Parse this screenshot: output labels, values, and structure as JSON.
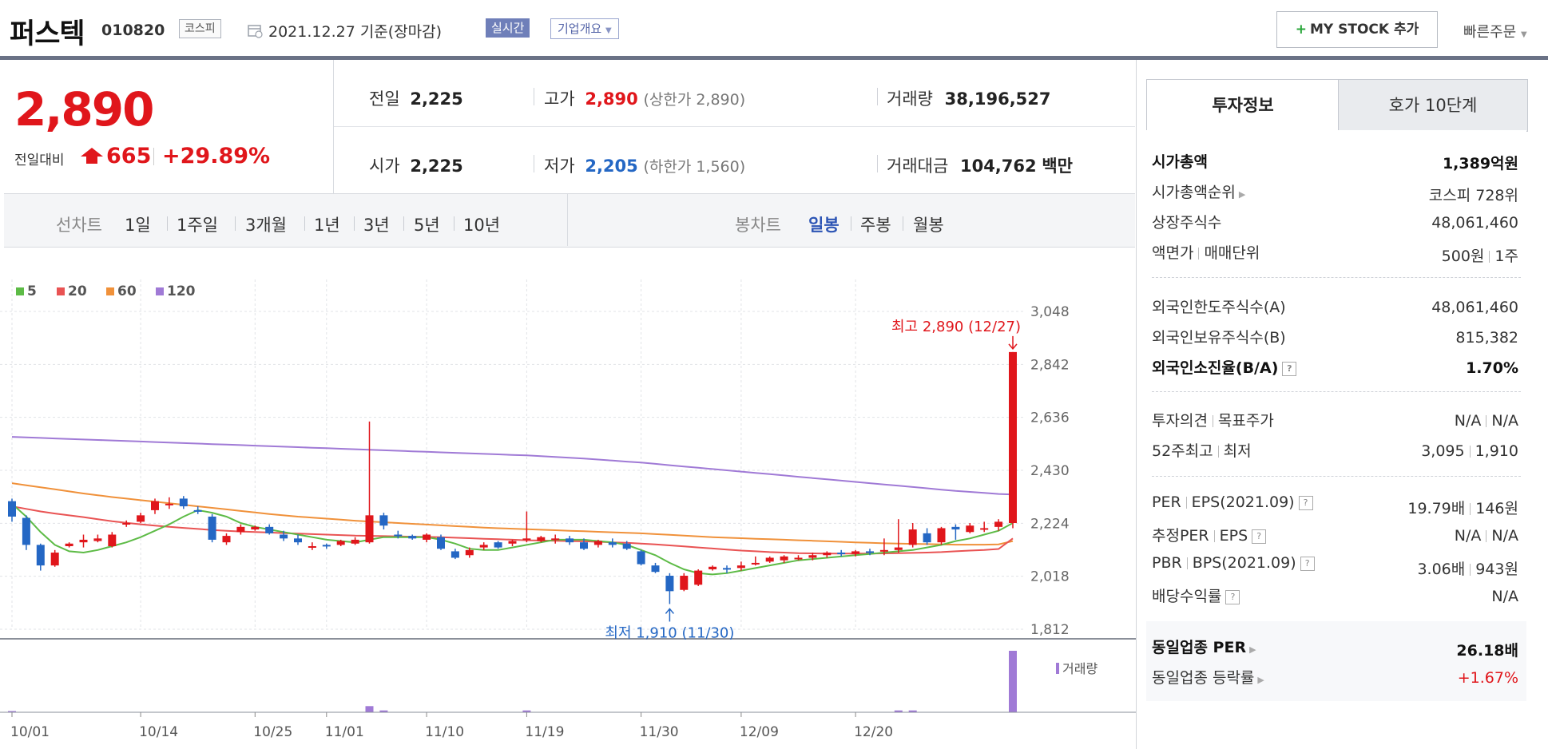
{
  "header": {
    "name": "퍼스텍",
    "code": "010820",
    "market": "코스피",
    "date": "2021.12.27 기준(장마감)",
    "realtime": "실시간",
    "corp_info": "기업개요",
    "mystock_button": "MY STOCK 추가",
    "quick_order": "빠른주문"
  },
  "price": {
    "current": "2,890",
    "change_label": "전일대비",
    "change": "665",
    "change_pct": "+29.89%"
  },
  "stats": {
    "prev_label": "전일",
    "prev": "2,225",
    "open_label": "시가",
    "open": "2,225",
    "high_label": "고가",
    "high": "2,890",
    "upper_limit": "(상한가 2,890)",
    "low_label": "저가",
    "low": "2,205",
    "lower_limit": "(하한가 1,560)",
    "volume_label": "거래량",
    "volume": "38,196,527",
    "amount_label": "거래대금",
    "amount": "104,762",
    "amount_unit": "백만"
  },
  "period_bar": {
    "line_label": "선차트",
    "line_periods": [
      "1일",
      "1주일",
      "3개월",
      "1년",
      "3년",
      "5년",
      "10년"
    ],
    "candle_label": "봉차트",
    "candle_periods": [
      "일봉",
      "주봉",
      "월봉"
    ],
    "active_candle": "일봉"
  },
  "right_panel": {
    "tabs": [
      "투자정보",
      "호가 10단계"
    ],
    "rows": [
      {
        "label": "시가총액",
        "value": "1,389억원"
      },
      {
        "label": "시가총액순위",
        "value": "코스피 728위"
      },
      {
        "label": "상장주식수",
        "value": "48,061,460"
      },
      {
        "label": "액면가",
        "label2": "매매단위",
        "value": "500원",
        "value2": "1주"
      },
      {
        "label": "외국인한도주식수(A)",
        "value": "48,061,460"
      },
      {
        "label": "외국인보유주식수(B)",
        "value": "815,382"
      },
      {
        "label": "외국인소진율(B/A)",
        "value": "1.70%"
      },
      {
        "label": "투자의견",
        "label2": "목표주가",
        "value": "N/A",
        "value2": "N/A"
      },
      {
        "label": "52주최고",
        "label2": "최저",
        "value": "3,095",
        "value2": "1,910"
      },
      {
        "label": "PER",
        "label2": "EPS(2021.09)",
        "value": "19.79배",
        "value2": "146원"
      },
      {
        "label": "추정PER",
        "label2": "EPS",
        "value": "N/A",
        "value2": "N/A"
      },
      {
        "label": "PBR",
        "label2": "BPS(2021.09)",
        "value": "3.06배",
        "value2": "943원"
      },
      {
        "label": "배당수익률",
        "value": "N/A"
      },
      {
        "label": "동일업종 PER",
        "value": "26.18배"
      },
      {
        "label": "동일업종 등락률",
        "value": "+1.67%"
      }
    ]
  },
  "colors": {
    "up": "#e0161b",
    "down": "#2467c4",
    "ma5": "#5dbb46",
    "ma20": "#e95353",
    "ma60": "#f0913a",
    "ma120": "#a07ad6",
    "volume": "#a07ad6"
  },
  "chart_data": {
    "type": "candlestick",
    "legend": [
      "5",
      "20",
      "60",
      "120"
    ],
    "y_ticks": [
      "3,048",
      "2,842",
      "2,636",
      "2,430",
      "2,224",
      "2,018",
      "1,812"
    ],
    "ylim": [
      1812,
      3048
    ],
    "x_ticks": [
      "10/01",
      "10/14",
      "10/25",
      "11/01",
      "11/10",
      "11/19",
      "11/30",
      "12/09",
      "12/20"
    ],
    "annotation_high": "최고 2,890 (12/27)",
    "annotation_low": "최저 1,910 (11/30)",
    "volume_label": "거래량",
    "candles": [
      [
        2310,
        2320,
        2230,
        2250
      ],
      [
        2245,
        2255,
        2120,
        2140
      ],
      [
        2140,
        2145,
        2040,
        2060
      ],
      [
        2060,
        2120,
        2055,
        2110
      ],
      [
        2135,
        2150,
        2130,
        2145
      ],
      [
        2150,
        2180,
        2130,
        2160
      ],
      [
        2155,
        2180,
        2150,
        2165
      ],
      [
        2135,
        2190,
        2130,
        2180
      ],
      [
        2220,
        2235,
        2210,
        2225
      ],
      [
        2230,
        2265,
        2225,
        2255
      ],
      [
        2275,
        2320,
        2260,
        2310
      ],
      [
        2295,
        2325,
        2280,
        2300
      ],
      [
        2320,
        2330,
        2280,
        2290
      ],
      [
        2275,
        2290,
        2260,
        2270
      ],
      [
        2250,
        2260,
        2150,
        2160
      ],
      [
        2150,
        2185,
        2140,
        2175
      ],
      [
        2190,
        2220,
        2180,
        2210
      ],
      [
        2200,
        2215,
        2195,
        2210
      ],
      [
        2210,
        2220,
        2180,
        2185
      ],
      [
        2180,
        2195,
        2155,
        2165
      ],
      [
        2165,
        2180,
        2140,
        2150
      ],
      [
        2135,
        2150,
        2120,
        2135
      ],
      [
        2140,
        2145,
        2125,
        2135
      ],
      [
        2140,
        2160,
        2135,
        2155
      ],
      [
        2145,
        2170,
        2140,
        2160
      ],
      [
        2150,
        2620,
        2145,
        2255
      ],
      [
        2255,
        2265,
        2200,
        2215
      ],
      [
        2180,
        2195,
        2165,
        2175
      ],
      [
        2175,
        2180,
        2160,
        2165
      ],
      [
        2160,
        2185,
        2150,
        2180
      ],
      [
        2170,
        2180,
        2120,
        2125
      ],
      [
        2115,
        2125,
        2085,
        2090
      ],
      [
        2100,
        2130,
        2090,
        2120
      ],
      [
        2130,
        2150,
        2120,
        2140
      ],
      [
        2150,
        2155,
        2125,
        2130
      ],
      [
        2145,
        2160,
        2135,
        2155
      ],
      [
        2160,
        2270,
        2150,
        2165
      ],
      [
        2155,
        2175,
        2150,
        2170
      ],
      [
        2160,
        2180,
        2145,
        2165
      ],
      [
        2165,
        2175,
        2140,
        2150
      ],
      [
        2150,
        2165,
        2120,
        2125
      ],
      [
        2140,
        2160,
        2130,
        2155
      ],
      [
        2150,
        2165,
        2130,
        2140
      ],
      [
        2145,
        2155,
        2120,
        2125
      ],
      [
        2115,
        2120,
        2060,
        2065
      ],
      [
        2060,
        2070,
        2030,
        2035
      ],
      [
        2020,
        2030,
        1910,
        1960
      ],
      [
        1965,
        2030,
        1960,
        2020
      ],
      [
        1985,
        2045,
        1980,
        2040
      ],
      [
        2045,
        2060,
        2040,
        2055
      ],
      [
        2050,
        2060,
        2030,
        2045
      ],
      [
        2050,
        2075,
        2040,
        2060
      ],
      [
        2065,
        2095,
        2060,
        2070
      ],
      [
        2075,
        2095,
        2070,
        2090
      ],
      [
        2080,
        2100,
        2070,
        2095
      ],
      [
        2085,
        2100,
        2080,
        2090
      ],
      [
        2090,
        2110,
        2080,
        2100
      ],
      [
        2100,
        2115,
        2090,
        2110
      ],
      [
        2110,
        2120,
        2095,
        2105
      ],
      [
        2105,
        2120,
        2095,
        2115
      ],
      [
        2115,
        2125,
        2100,
        2110
      ],
      [
        2115,
        2165,
        2100,
        2120
      ],
      [
        2120,
        2240,
        2110,
        2130
      ],
      [
        2140,
        2225,
        2130,
        2200
      ],
      [
        2185,
        2205,
        2140,
        2150
      ],
      [
        2150,
        2210,
        2140,
        2205
      ],
      [
        2210,
        2220,
        2160,
        2200
      ],
      [
        2190,
        2225,
        2185,
        2215
      ],
      [
        2200,
        2230,
        2190,
        2205
      ],
      [
        2210,
        2240,
        2195,
        2230
      ],
      [
        2225,
        2890,
        2205,
        2890
      ]
    ],
    "ma5": [
      2300,
      2250,
      2190,
      2140,
      2115,
      2110,
      2120,
      2135,
      2150,
      2170,
      2195,
      2220,
      2250,
      2275,
      2265,
      2250,
      2225,
      2210,
      2200,
      2190,
      2180,
      2170,
      2160,
      2155,
      2150,
      2160,
      2170,
      2170,
      2170,
      2170,
      2160,
      2145,
      2125,
      2120,
      2120,
      2130,
      2140,
      2150,
      2160,
      2160,
      2160,
      2155,
      2150,
      2140,
      2120,
      2100,
      2070,
      2045,
      2030,
      2025,
      2030,
      2040,
      2050,
      2060,
      2070,
      2080,
      2085,
      2090,
      2095,
      2100,
      2105,
      2110,
      2115,
      2120,
      2130,
      2140,
      2155,
      2165,
      2180,
      2195,
      2225
    ],
    "ma20": [
      2290,
      2280,
      2270,
      2262,
      2255,
      2248,
      2240,
      2232,
      2226,
      2220,
      2215,
      2210,
      2206,
      2202,
      2198,
      2195,
      2192,
      2190,
      2188,
      2186,
      2184,
      2182,
      2180,
      2178,
      2176,
      2175,
      2174,
      2173,
      2172,
      2171,
      2170,
      2168,
      2166,
      2164,
      2162,
      2160,
      2158,
      2157,
      2156,
      2155,
      2154,
      2152,
      2150,
      2148,
      2145,
      2142,
      2138,
      2134,
      2130,
      2126,
      2122,
      2118,
      2115,
      2112,
      2110,
      2108,
      2107,
      2106,
      2106,
      2106,
      2106,
      2107,
      2108,
      2109,
      2110,
      2112,
      2115,
      2118,
      2120,
      2124,
      2165
    ],
    "ma60": [
      2380,
      2372,
      2364,
      2356,
      2348,
      2340,
      2333,
      2326,
      2320,
      2314,
      2308,
      2302,
      2296,
      2290,
      2284,
      2278,
      2272,
      2266,
      2260,
      2255,
      2250,
      2246,
      2242,
      2238,
      2234,
      2231,
      2228,
      2225,
      2222,
      2219,
      2216,
      2213,
      2210,
      2207,
      2205,
      2203,
      2201,
      2199,
      2197,
      2195,
      2193,
      2191,
      2189,
      2187,
      2185,
      2182,
      2179,
      2176,
      2173,
      2170,
      2168,
      2166,
      2164,
      2162,
      2160,
      2158,
      2156,
      2154,
      2152,
      2150,
      2148,
      2146,
      2145,
      2144,
      2143,
      2142,
      2141,
      2141,
      2141,
      2142,
      2155
    ],
    "ma120": [
      2560,
      2558,
      2556,
      2554,
      2552,
      2550,
      2548,
      2546,
      2544,
      2542,
      2540,
      2538,
      2536,
      2534,
      2532,
      2530,
      2528,
      2526,
      2524,
      2522,
      2520,
      2518,
      2516,
      2514,
      2512,
      2510,
      2508,
      2506,
      2504,
      2502,
      2500,
      2498,
      2496,
      2494,
      2492,
      2490,
      2488,
      2485,
      2482,
      2479,
      2476,
      2472,
      2468,
      2464,
      2460,
      2455,
      2450,
      2445,
      2440,
      2435,
      2430,
      2425,
      2420,
      2415,
      2410,
      2405,
      2400,
      2395,
      2390,
      2385,
      2380,
      2375,
      2370,
      2365,
      2360,
      2355,
      2350,
      2346,
      2342,
      2338,
      2336
    ],
    "volume": [
      2,
      0,
      0,
      0,
      0,
      0,
      0,
      0,
      0,
      0,
      0,
      0,
      0,
      0,
      0,
      0,
      0,
      0,
      0,
      0,
      0,
      0,
      0,
      0,
      0,
      10,
      3,
      0,
      0,
      0,
      0,
      0,
      0,
      0,
      0,
      0,
      3,
      0,
      0,
      0,
      0,
      0,
      0,
      0,
      0,
      0,
      0,
      0,
      0,
      0,
      0,
      0,
      0,
      0,
      0,
      0,
      0,
      0,
      0,
      0,
      0,
      0,
      3,
      3,
      0,
      0,
      0,
      0,
      0,
      0,
      100
    ]
  }
}
